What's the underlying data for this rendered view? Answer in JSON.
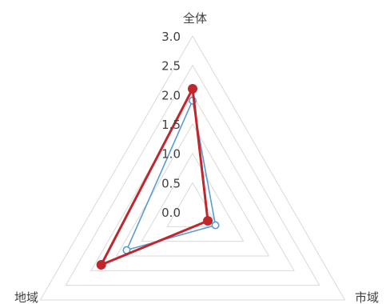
{
  "chart_data": {
    "type": "radar",
    "categories": [
      "全体",
      "市域",
      "地域"
    ],
    "r_ticks": [
      "0.0",
      "0.5",
      "1.0",
      "1.5",
      "2.0",
      "2.5",
      "3.0"
    ],
    "rlim": [
      0,
      3
    ],
    "grid": true,
    "series": [
      {
        "color": "#5b9bd5",
        "marker": "hollow-circle",
        "values": [
          1.9,
          0.45,
          1.3
        ]
      },
      {
        "color": "#c0272d",
        "marker": "filled-circle",
        "values": [
          2.1,
          0.3,
          1.8
        ]
      }
    ],
    "colors": {
      "grid": "#d9d9d9",
      "text": "#404040"
    }
  }
}
